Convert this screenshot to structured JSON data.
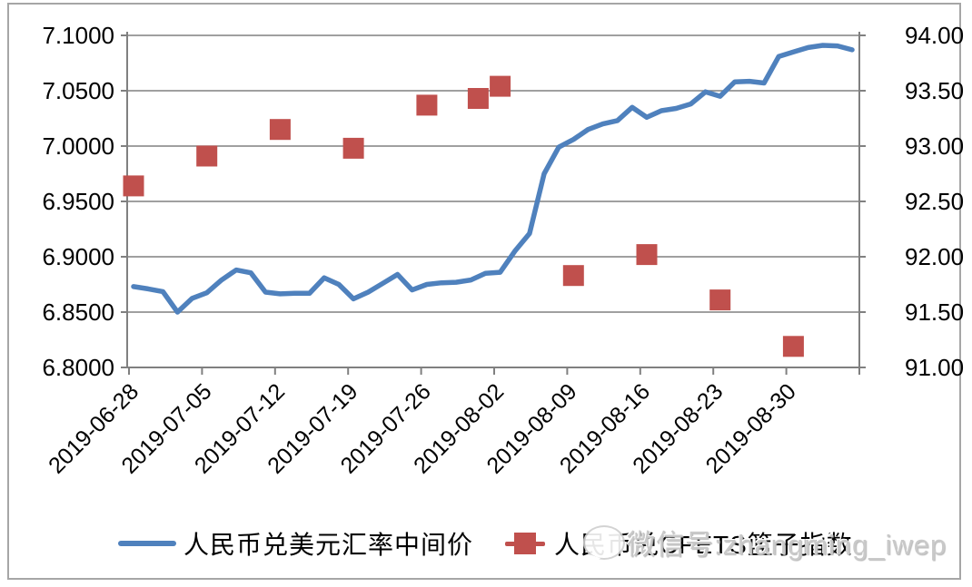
{
  "watermark": {
    "text": "微信号:zhangming_iwep",
    "icon": "wechat-bubble-icon"
  },
  "legend": {
    "line_label": "人民币兑美元汇率中间价",
    "scatter_label": "人民币兑CFETS篮子指数"
  },
  "colors": {
    "line": "#4f81bd",
    "scatter": "#c0504d",
    "grid": "#808080",
    "axis": "#808080",
    "frame": "#a6a6a6",
    "text": "#000000"
  },
  "chart_data": {
    "type": "line",
    "title": "",
    "xlabel": "",
    "ylabel_left": "",
    "ylabel_right": "",
    "grid": "horizontal",
    "legend_position": "bottom",
    "x_tick_labels": [
      "2019-06-28",
      "2019-07-05",
      "2019-07-12",
      "2019-07-19",
      "2019-07-26",
      "2019-08-02",
      "2019-08-09",
      "2019-08-16",
      "2019-08-23",
      "2019-08-30"
    ],
    "left_axis": {
      "min": 6.8,
      "max": 7.1,
      "step": 0.05,
      "tick_labels": [
        "7.1000",
        "7.0500",
        "7.0000",
        "6.9500",
        "6.9000",
        "6.8500",
        "6.8000"
      ]
    },
    "right_axis": {
      "min": 91.0,
      "max": 94.0,
      "step": 0.5,
      "tick_labels": [
        "94.00",
        "93.50",
        "93.00",
        "92.50",
        "92.00",
        "91.50",
        "91.00"
      ]
    },
    "series": [
      {
        "name": "人民币兑美元汇率中间价",
        "type": "line",
        "axis": "left",
        "values": [
          6.873,
          6.871,
          6.8685,
          6.85,
          6.8625,
          6.8675,
          6.879,
          6.888,
          6.8855,
          6.868,
          6.8665,
          6.867,
          6.867,
          6.881,
          6.875,
          6.862,
          6.868,
          6.876,
          6.884,
          6.87,
          6.875,
          6.8765,
          6.877,
          6.879,
          6.885,
          6.886,
          6.905,
          6.921,
          6.975,
          6.999,
          7.006,
          7.015,
          7.02,
          7.023,
          7.035,
          7.026,
          7.032,
          7.034,
          7.038,
          7.049,
          7.045,
          7.058,
          7.0585,
          7.057,
          7.081,
          7.085,
          7.089,
          7.091,
          7.0905,
          7.087
        ]
      },
      {
        "name": "人民币兑CFETS篮子指数",
        "type": "scatter-square",
        "axis": "right",
        "points": [
          {
            "i": 0,
            "v": 92.64
          },
          {
            "i": 5,
            "v": 92.91
          },
          {
            "i": 10,
            "v": 93.15
          },
          {
            "i": 15,
            "v": 92.98
          },
          {
            "i": 20,
            "v": 93.37
          },
          {
            "i": 23.5,
            "v": 93.43
          },
          {
            "i": 25,
            "v": 93.54
          },
          {
            "i": 30,
            "v": 91.83
          },
          {
            "i": 35,
            "v": 92.02
          },
          {
            "i": 40,
            "v": 91.61
          },
          {
            "i": 45,
            "v": 91.19
          }
        ]
      }
    ]
  }
}
